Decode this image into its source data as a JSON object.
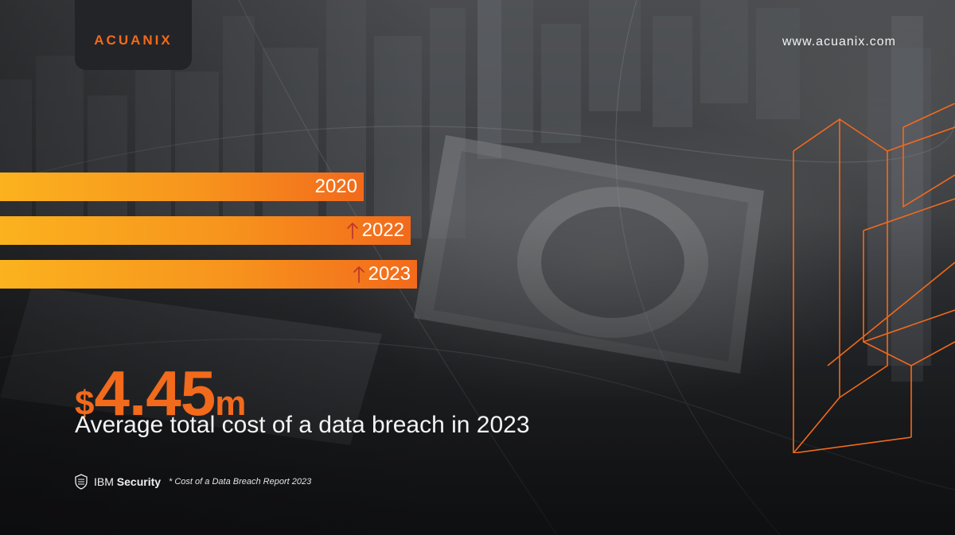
{
  "brand": {
    "logo_text": "ACUANIX",
    "website": "www.acuanix.com",
    "accent_color": "#f26a1b",
    "bar_gradient": [
      "#fbb21e",
      "#f26a1b"
    ]
  },
  "bars": [
    {
      "label": "2020",
      "icon": ""
    },
    {
      "label": "2022",
      "icon": "arrow-up-icon"
    },
    {
      "label": "2023",
      "icon": "arrow-up-icon"
    }
  ],
  "headline": {
    "currency": "$",
    "value": "4.45",
    "unit": "m",
    "subtitle": "Average total cost of a data breach in 2023"
  },
  "footer": {
    "source_brand_light": "IBM",
    "source_brand_bold": "Security",
    "source_note": "* Cost of a Data Breach Report 2023",
    "icon": "ibm-shield-icon"
  }
}
